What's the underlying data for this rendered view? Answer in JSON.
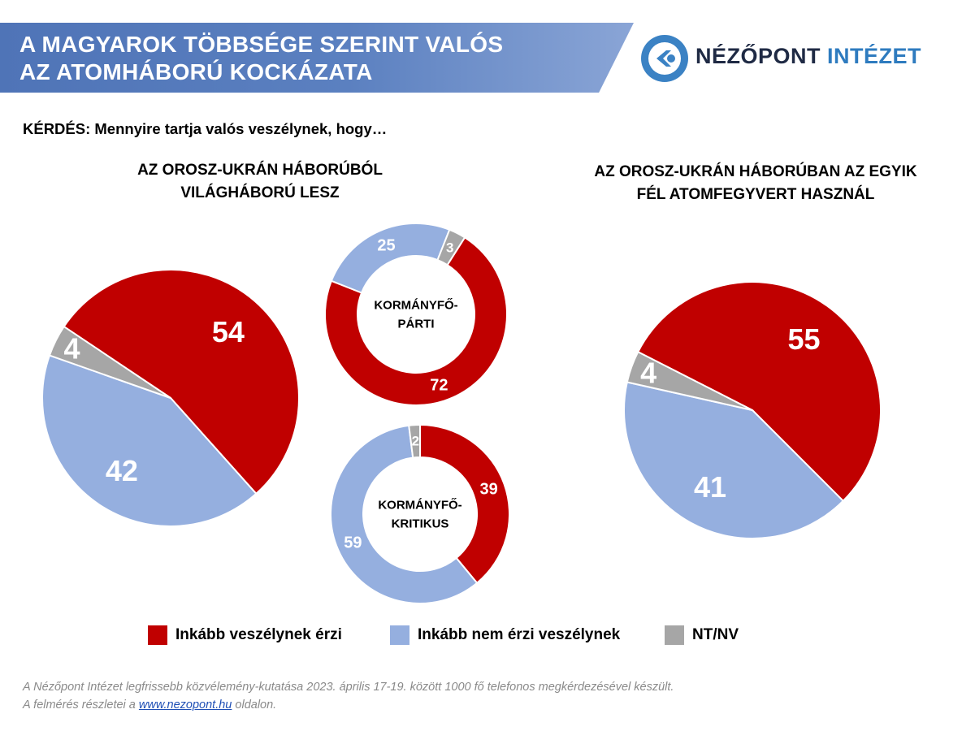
{
  "header": {
    "title_line1": "A MAGYAROK TÖBBSÉGE SZERINT VALÓS",
    "title_line2": "AZ ATOMHÁBORÚ KOCKÁZATA",
    "logo_word1": "NÉZŐPONT",
    "logo_word2": "INTÉZET"
  },
  "question": "KÉRDÉS: Mennyire tartja valós veszélynek, hogy…",
  "colors": {
    "red": "#c00000",
    "blue": "#95afdf",
    "gray": "#a6a6a6"
  },
  "chart_data": [
    {
      "type": "pie",
      "title_line1": "AZ OROSZ-UKRÁN HÁBORÚBÓL",
      "title_line2": "VILÁGHÁBORÚ LESZ",
      "categories": [
        "Inkább veszélynek érzi",
        "Inkább nem érzi veszélynek",
        "NT/NV"
      ],
      "values": [
        54,
        42,
        4
      ]
    },
    {
      "type": "pie",
      "variant": "donut",
      "center_line1": "KORMÁNYFŐ-",
      "center_line2": "PÁRTI",
      "categories": [
        "Inkább veszélynek érzi",
        "Inkább nem érzi veszélynek",
        "NT/NV"
      ],
      "values": [
        72,
        25,
        3
      ]
    },
    {
      "type": "pie",
      "variant": "donut",
      "center_line1": "KORMÁNYFŐ-",
      "center_line2": "KRITIKUS",
      "categories": [
        "Inkább veszélynek érzi",
        "Inkább nem érzi veszélynek",
        "NT/NV"
      ],
      "values": [
        39,
        59,
        2
      ]
    },
    {
      "type": "pie",
      "title_line1": "AZ OROSZ-UKRÁN HÁBORÚBAN AZ EGYIK",
      "title_line2": "FÉL ATOMFEGYVERT HASZNÁL",
      "categories": [
        "Inkább veszélynek érzi",
        "Inkább nem érzi veszélynek",
        "NT/NV"
      ],
      "values": [
        55,
        41,
        4
      ]
    }
  ],
  "legend": [
    {
      "label": "Inkább veszélynek érzi",
      "color": "#c00000"
    },
    {
      "label": "Inkább nem érzi veszélynek",
      "color": "#95afdf"
    },
    {
      "label": "NT/NV",
      "color": "#a6a6a6"
    }
  ],
  "footnote": {
    "line1": "A Nézőpont Intézet legfrissebb közvélemény-kutatása  2023. április 17-19. között 1000 fő telefonos megkérdezésével készült.",
    "line2_before": "A felmérés részletei a ",
    "link": "www.nezopont.hu",
    "line2_after": "  oldalon."
  }
}
